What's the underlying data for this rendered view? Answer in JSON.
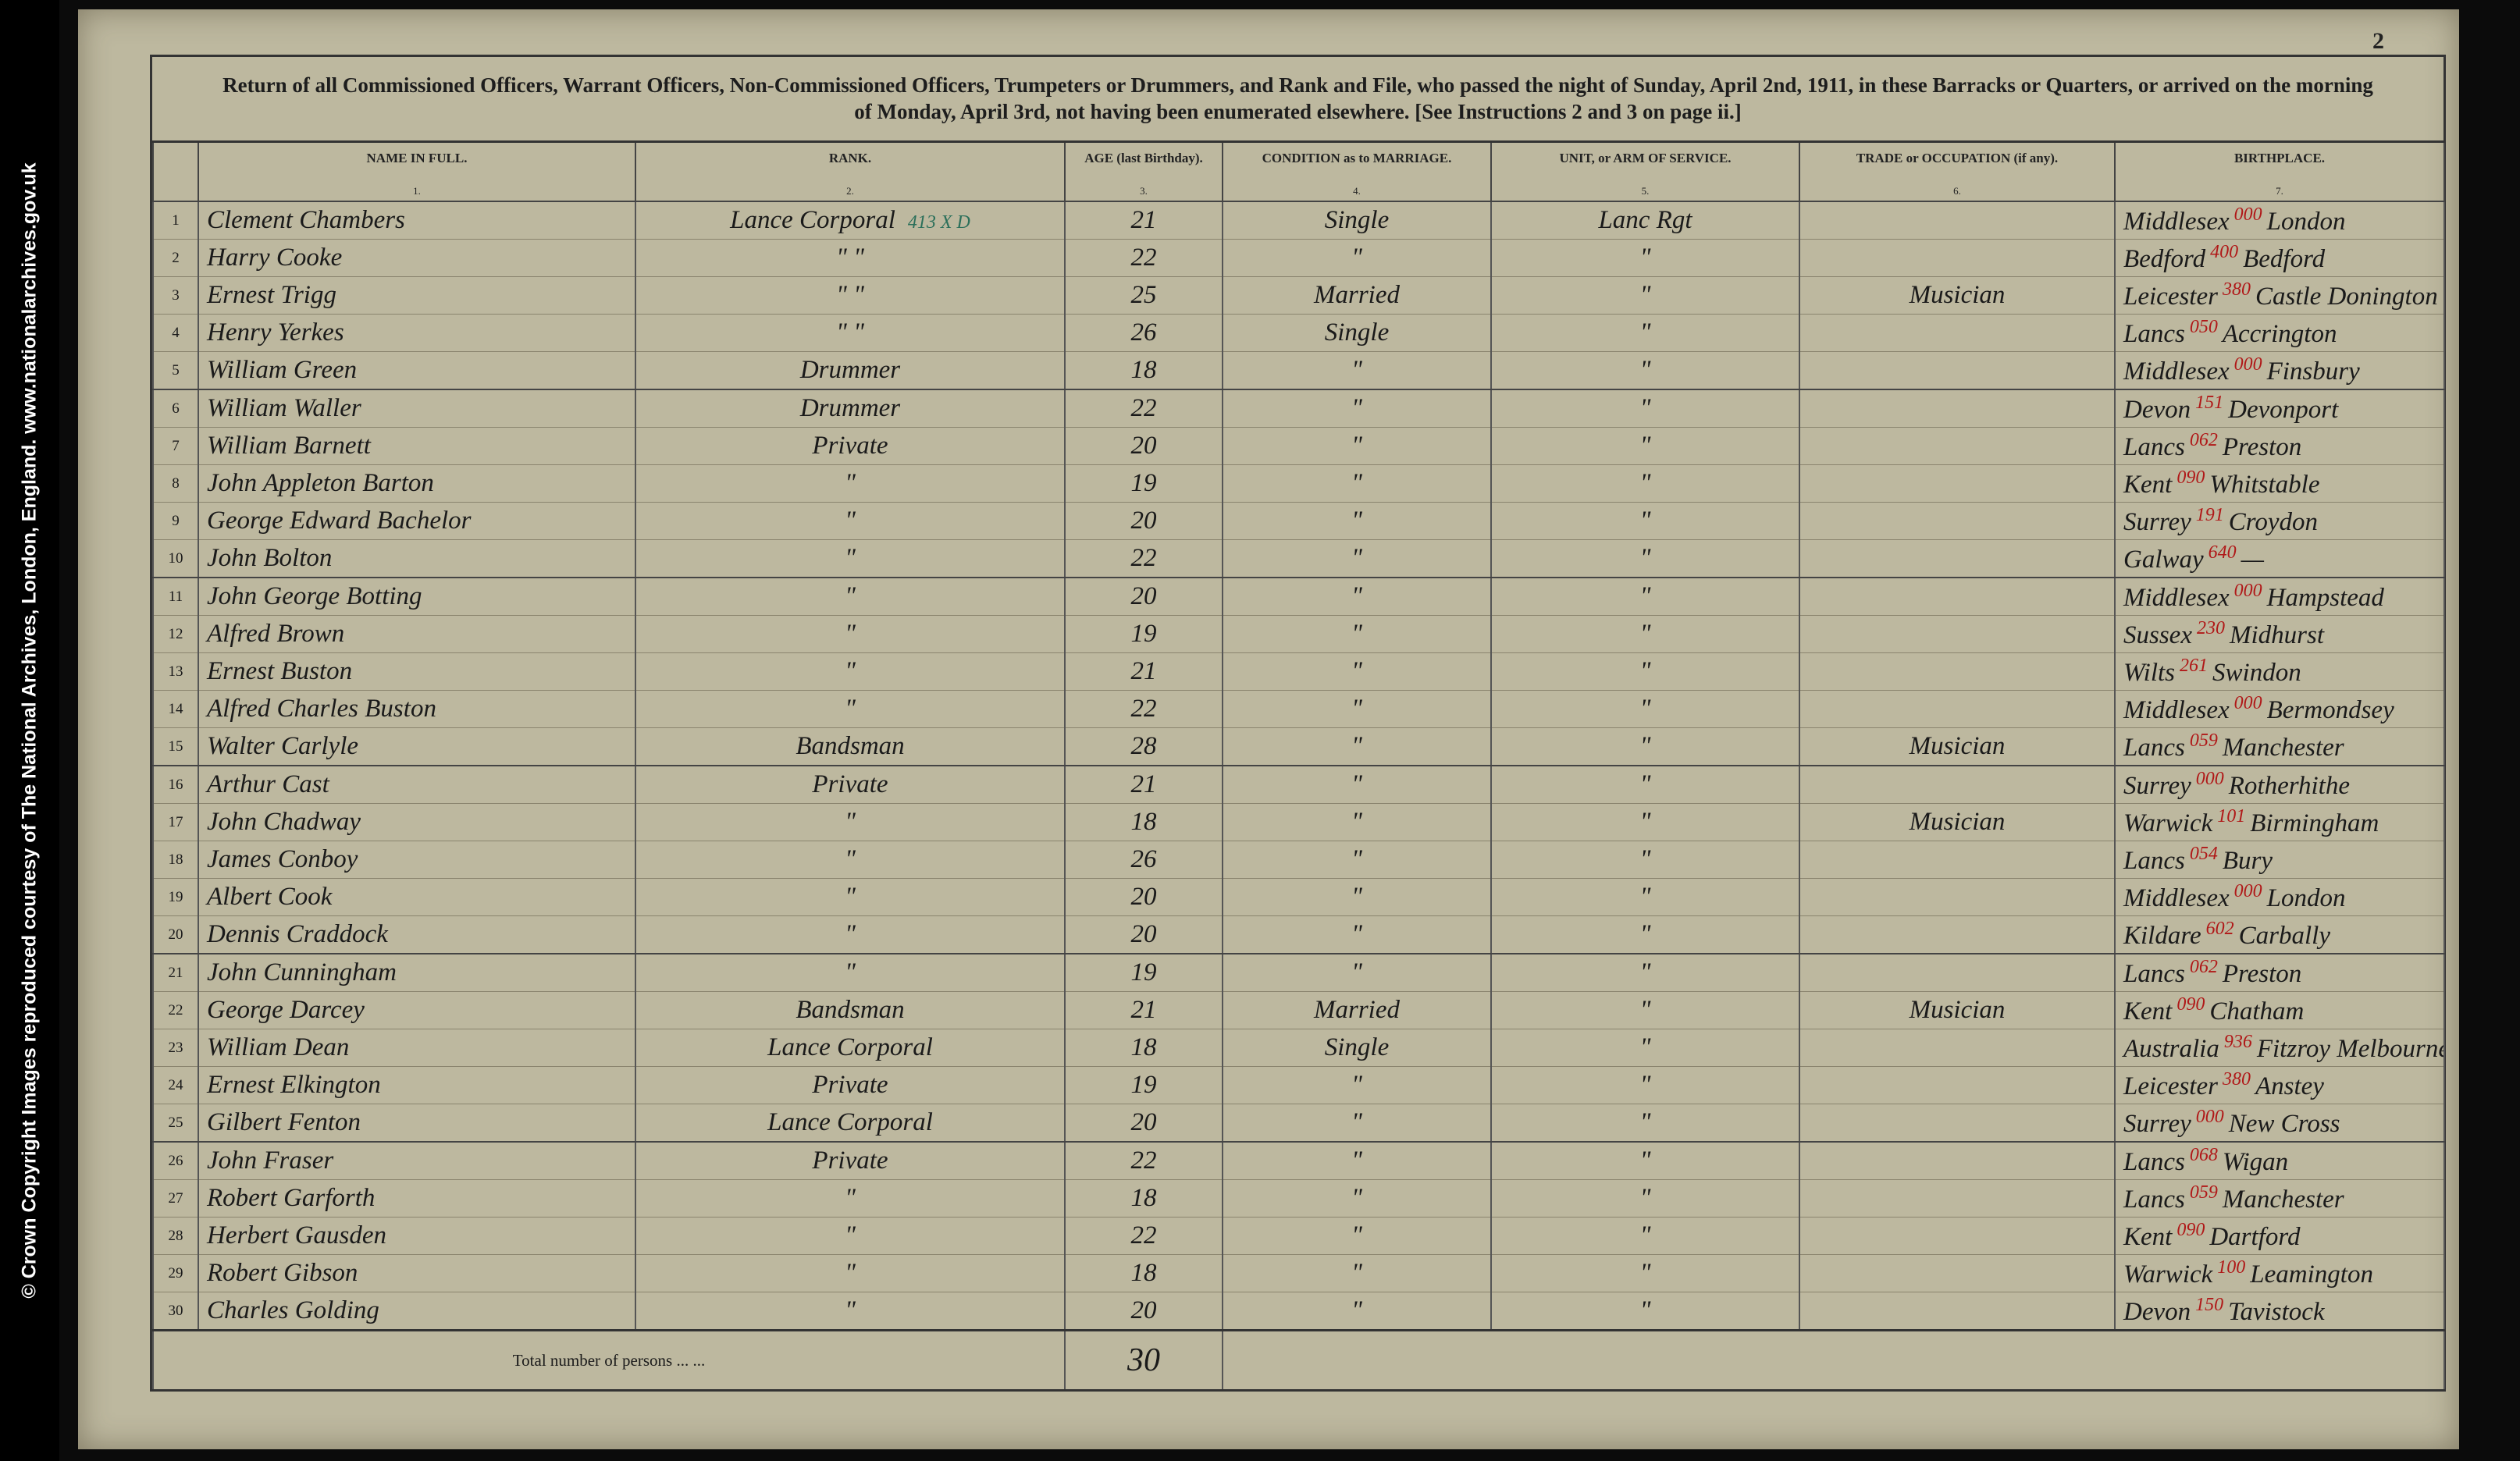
{
  "side_caption": "© Crown Copyright Images reproduced courtesy of The National Archives, London, England. www.nationalarchives.gov.uk",
  "page_number": "2",
  "header": {
    "title": "Return of all Commissioned Officers, Warrant Officers, Non-Commissioned Officers, Trumpeters or Drummers, and Rank and File, who passed the night of Sunday, April 2nd, 1911, in these Barracks or Quarters, or arrived on the morning of Monday, April 3rd, not having been enumerated elsewhere. [See Instructions 2 and 3 on page ii.]"
  },
  "table": {
    "columns": [
      {
        "label": "NAME IN FULL.",
        "number": "1."
      },
      {
        "label": "RANK.",
        "number": "2."
      },
      {
        "label": "AGE (last Birthday).",
        "number": "3."
      },
      {
        "label": "CONDITION as to MARRIAGE.",
        "number": "4."
      },
      {
        "label": "UNIT, or ARM OF SERVICE.",
        "number": "5."
      },
      {
        "label": "TRADE or OCCUPATION (if any).",
        "number": "6."
      },
      {
        "label": "BIRTHPLACE.",
        "number": "7."
      }
    ],
    "rows": [
      {
        "no": 1,
        "name": "Clement Chambers",
        "rank": "Lance Corporal",
        "rank_note": "413 X D",
        "age": 21,
        "condition": "Single",
        "unit": "Lanc Rgt",
        "county": "Middlesex",
        "code": "000",
        "place": "London"
      },
      {
        "no": 2,
        "name": "Harry Cooke",
        "rank": "\"  \"",
        "age": 22,
        "condition": "\"",
        "unit": "\"",
        "county": "Bedford",
        "code": "400",
        "place": "Bedford"
      },
      {
        "no": 3,
        "name": "Ernest Trigg",
        "rank": "\"  \"",
        "age": 25,
        "condition": "Married",
        "unit": "\"",
        "trade": "Musician",
        "county": "Leicester",
        "code": "380",
        "place": "Castle Donington"
      },
      {
        "no": 4,
        "name": "Henry Yerkes",
        "rank": "\"  \"",
        "age": 26,
        "condition": "Single",
        "unit": "\"",
        "county": "Lancs",
        "code": "050",
        "place": "Accrington"
      },
      {
        "no": 5,
        "name": "William Green",
        "rank": "Drummer",
        "age": 18,
        "condition": "\"",
        "unit": "\"",
        "county": "Middlesex",
        "code": "000",
        "place": "Finsbury"
      },
      {
        "no": 6,
        "name": "William Waller",
        "rank": "Drummer",
        "age": 22,
        "condition": "\"",
        "unit": "\"",
        "county": "Devon",
        "code": "151",
        "place": "Devonport"
      },
      {
        "no": 7,
        "name": "William Barnett",
        "rank": "Private",
        "age": 20,
        "condition": "\"",
        "unit": "\"",
        "county": "Lancs",
        "code": "062",
        "place": "Preston"
      },
      {
        "no": 8,
        "name": "John Appleton Barton",
        "rank": "\"",
        "age": 19,
        "condition": "\"",
        "unit": "\"",
        "county": "Kent",
        "code": "090",
        "place": "Whitstable"
      },
      {
        "no": 9,
        "name": "George Edward Bachelor",
        "rank": "\"",
        "age": 20,
        "condition": "\"",
        "unit": "\"",
        "county": "Surrey",
        "code": "191",
        "place": "Croydon"
      },
      {
        "no": 10,
        "name": "John Bolton",
        "rank": "\"",
        "age": 22,
        "condition": "\"",
        "unit": "\"",
        "county": "Galway",
        "code": "640",
        "place": "—"
      },
      {
        "no": 11,
        "name": "John George Botting",
        "rank": "\"",
        "age": 20,
        "condition": "\"",
        "unit": "\"",
        "county": "Middlesex",
        "code": "000",
        "place": "Hampstead"
      },
      {
        "no": 12,
        "name": "Alfred Brown",
        "rank": "\"",
        "age": 19,
        "condition": "\"",
        "unit": "\"",
        "county": "Sussex",
        "code": "230",
        "place": "Midhurst"
      },
      {
        "no": 13,
        "name": "Ernest Buston",
        "rank": "\"",
        "age": 21,
        "condition": "\"",
        "unit": "\"",
        "county": "Wilts",
        "code": "261",
        "place": "Swindon"
      },
      {
        "no": 14,
        "name": "Alfred Charles Buston",
        "rank": "\"",
        "age": 22,
        "condition": "\"",
        "unit": "\"",
        "county": "Middlesex",
        "code": "000",
        "place": "Bermondsey"
      },
      {
        "no": 15,
        "name": "Walter Carlyle",
        "rank": "Bandsman",
        "age": 28,
        "condition": "\"",
        "unit": "\"",
        "trade": "Musician",
        "county": "Lancs",
        "code": "059",
        "place": "Manchester"
      },
      {
        "no": 16,
        "name": "Arthur Cast",
        "rank": "Private",
        "age": 21,
        "condition": "\"",
        "unit": "\"",
        "county": "Surrey",
        "code": "000",
        "place": "Rotherhithe"
      },
      {
        "no": 17,
        "name": "John Chadway",
        "rank": "\"",
        "age": 18,
        "condition": "\"",
        "unit": "\"",
        "trade": "Musician",
        "county": "Warwick",
        "code": "101",
        "place": "Birmingham"
      },
      {
        "no": 18,
        "name": "James Conboy",
        "rank": "\"",
        "age": 26,
        "condition": "\"",
        "unit": "\"",
        "county": "Lancs",
        "code": "054",
        "place": "Bury"
      },
      {
        "no": 19,
        "name": "Albert Cook",
        "rank": "\"",
        "age": 20,
        "condition": "\"",
        "unit": "\"",
        "county": "Middlesex",
        "code": "000",
        "place": "London"
      },
      {
        "no": 20,
        "name": "Dennis Craddock",
        "rank": "\"",
        "age": 20,
        "condition": "\"",
        "unit": "\"",
        "county": "Kildare",
        "code": "602",
        "place": "Carbally"
      },
      {
        "no": 21,
        "name": "John Cunningham",
        "rank": "\"",
        "age": 19,
        "condition": "\"",
        "unit": "\"",
        "county": "Lancs",
        "code": "062",
        "place": "Preston"
      },
      {
        "no": 22,
        "name": "George Darcey",
        "rank": "Bandsman",
        "age": 21,
        "condition": "Married",
        "unit": "\"",
        "trade": "Musician",
        "county": "Kent",
        "code": "090",
        "place": "Chatham"
      },
      {
        "no": 23,
        "name": "William Dean",
        "rank": "Lance Corporal",
        "age": 18,
        "condition": "Single",
        "unit": "\"",
        "county": "Australia",
        "code": "936",
        "place": "Fitzroy Melbourne"
      },
      {
        "no": 24,
        "name": "Ernest Elkington",
        "rank": "Private",
        "age": 19,
        "condition": "\"",
        "unit": "\"",
        "county": "Leicester",
        "code": "380",
        "place": "Anstey"
      },
      {
        "no": 25,
        "name": "Gilbert Fenton",
        "rank": "Lance Corporal",
        "age": 20,
        "condition": "\"",
        "unit": "\"",
        "county": "Surrey",
        "code": "000",
        "place": "New Cross"
      },
      {
        "no": 26,
        "name": "John Fraser",
        "rank": "Private",
        "age": 22,
        "condition": "\"",
        "unit": "\"",
        "county": "Lancs",
        "code": "068",
        "place": "Wigan"
      },
      {
        "no": 27,
        "name": "Robert Garforth",
        "rank": "\"",
        "age": 18,
        "condition": "\"",
        "unit": "\"",
        "county": "Lancs",
        "code": "059",
        "place": "Manchester"
      },
      {
        "no": 28,
        "name": "Herbert Gausden",
        "rank": "\"",
        "age": 22,
        "condition": "\"",
        "unit": "\"",
        "county": "Kent",
        "code": "090",
        "place": "Dartford"
      },
      {
        "no": 29,
        "name": "Robert Gibson",
        "rank": "\"",
        "age": 18,
        "condition": "\"",
        "unit": "\"",
        "county": "Warwick",
        "code": "100",
        "place": "Leamington"
      },
      {
        "no": 30,
        "name": "Charles Golding",
        "rank": "\"",
        "age": 20,
        "condition": "\"",
        "unit": "\"",
        "county": "Devon",
        "code": "150",
        "place": "Tavistock"
      }
    ],
    "total": {
      "label": "Total number of persons  ...  ...",
      "value": 30
    }
  }
}
